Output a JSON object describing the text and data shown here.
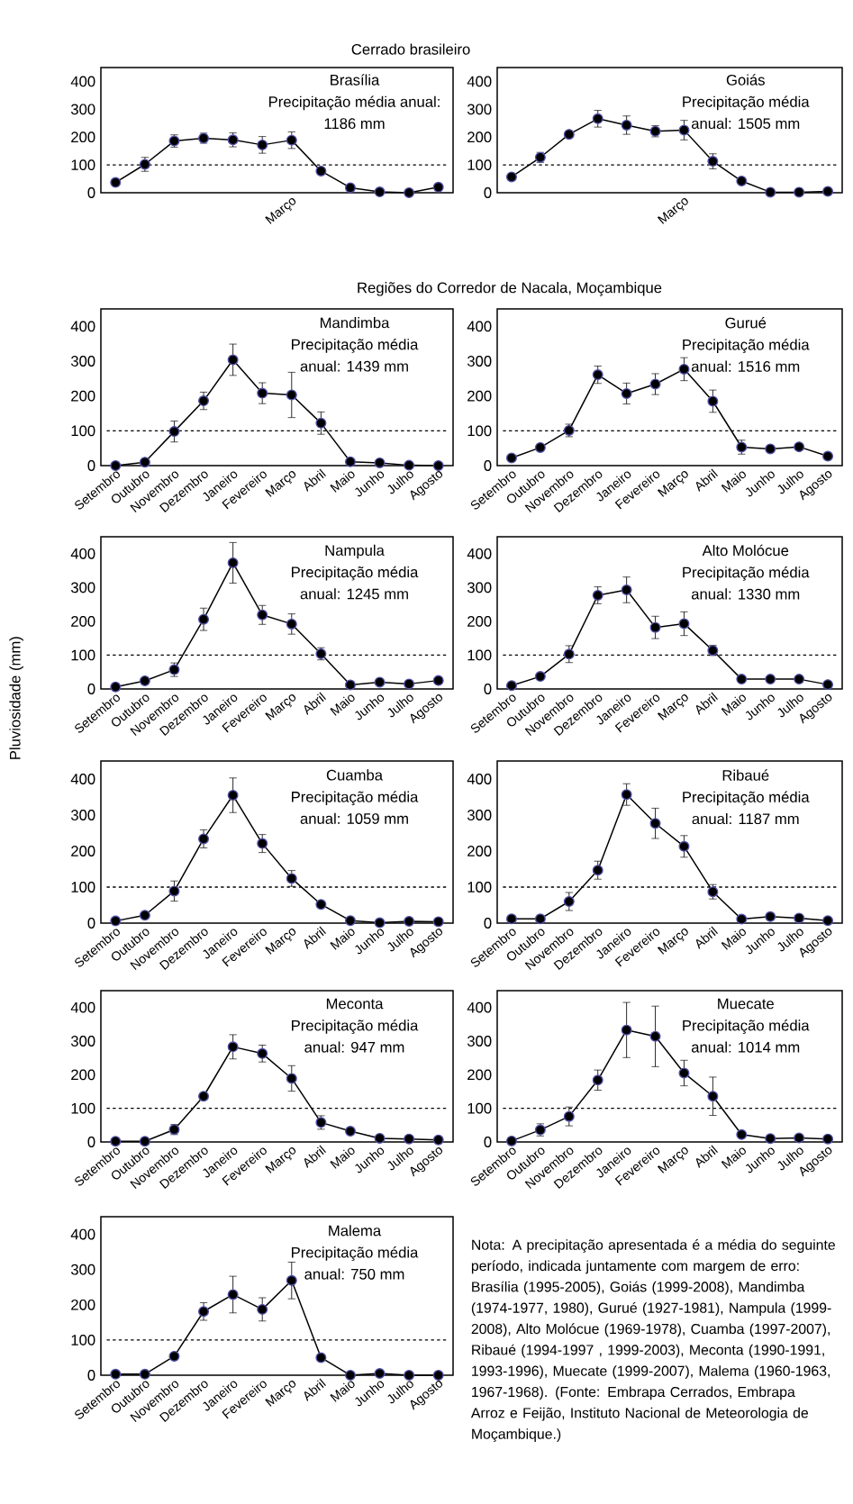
{
  "chart_data": [
    {
      "type": "line",
      "title": "Cerrado brasileiro",
      "subtitle": "Brasília",
      "annotations": [
        "Precipitação média anual:",
        "1186 mm"
      ],
      "categories": [
        null,
        null,
        null,
        null,
        null,
        null,
        "Março",
        null,
        null,
        null,
        null,
        null
      ],
      "values": [
        37,
        102,
        186,
        196,
        190,
        172,
        189,
        78,
        18,
        3,
        0,
        20
      ],
      "errors": [
        null,
        25,
        22,
        18,
        25,
        30,
        30,
        null,
        null,
        null,
        null,
        null
      ],
      "color": "#000000",
      "marker": "circle",
      "ylim": [
        0,
        450
      ],
      "yticks": [
        0,
        100,
        200,
        300,
        400
      ],
      "ref_lines": [
        {
          "axis": "y",
          "value": 100,
          "line_style": "dashed"
        }
      ]
    },
    {
      "type": "line",
      "subtitle": "Goiás",
      "annotations": [
        "Precipitação média",
        "anual: 1505 mm"
      ],
      "categories": [
        null,
        null,
        null,
        null,
        null,
        null,
        "Março",
        null,
        null,
        null,
        null,
        null
      ],
      "values": [
        57,
        127,
        210,
        266,
        243,
        221,
        225,
        113,
        42,
        2,
        2,
        5
      ],
      "errors": [
        null,
        18,
        null,
        30,
        33,
        20,
        35,
        27,
        null,
        null,
        null,
        null
      ],
      "color": "#000000",
      "marker": "circle",
      "ylim": [
        0,
        450
      ],
      "yticks": [
        0,
        100,
        200,
        300,
        400
      ],
      "ref_lines": [
        {
          "axis": "y",
          "value": 100,
          "line_style": "dashed"
        }
      ]
    },
    {
      "type": "line",
      "title": "Regiões do Corredor de Nacala, Moçambique",
      "subtitle": "Mandimba",
      "annotations": [
        "Precipitação média",
        "anual: 1439 mm"
      ],
      "categories": [
        "Setembro",
        "Outubro",
        "Novembro",
        "Dezembro",
        "Janeiro",
        "Fevereiro",
        "Março",
        "Abril",
        "Maio",
        "Junho",
        "Julho",
        "Agosto"
      ],
      "values": [
        0,
        10,
        98,
        186,
        304,
        208,
        203,
        122,
        11,
        8,
        1,
        0
      ],
      "errors": [
        null,
        null,
        30,
        25,
        45,
        30,
        65,
        32,
        null,
        null,
        null,
        null
      ],
      "color": "#000000",
      "marker": "circle",
      "ylim": [
        0,
        450
      ],
      "yticks": [
        0,
        100,
        200,
        300,
        400
      ],
      "ref_lines": [
        {
          "axis": "y",
          "value": 100,
          "line_style": "dashed"
        }
      ]
    },
    {
      "type": "line",
      "subtitle": "Gurué",
      "annotations": [
        "Precipitação média",
        "anual: 1516 mm"
      ],
      "categories": [
        "Setembro",
        "Outubro",
        "Novembro",
        "Dezembro",
        "Janeiro",
        "Fevereiro",
        "Março",
        "Abril",
        "Maio",
        "Junho",
        "Julho",
        "Agosto"
      ],
      "values": [
        22,
        52,
        101,
        261,
        207,
        234,
        277,
        185,
        53,
        48,
        54,
        27
      ],
      "errors": [
        null,
        null,
        18,
        25,
        30,
        30,
        33,
        32,
        20,
        null,
        null,
        null
      ],
      "color": "#000000",
      "marker": "circle",
      "ylim": [
        0,
        450
      ],
      "yticks": [
        0,
        100,
        200,
        300,
        400
      ],
      "ref_lines": [
        {
          "axis": "y",
          "value": 100,
          "line_style": "dashed"
        }
      ]
    },
    {
      "type": "line",
      "subtitle": "Nampula",
      "ylabel": "Pluviosidade (mm)",
      "annotations": [
        "Precipitação média",
        "anual: 1245 mm"
      ],
      "categories": [
        "Setembro",
        "Outubro",
        "Novembro",
        "Dezembro",
        "Janeiro",
        "Fevereiro",
        "Março",
        "Abril",
        "Maio",
        "Junho",
        "Julho",
        "Agosto"
      ],
      "values": [
        6,
        24,
        57,
        206,
        373,
        219,
        192,
        104,
        12,
        20,
        15,
        25
      ],
      "errors": [
        null,
        null,
        20,
        33,
        60,
        28,
        30,
        18,
        null,
        null,
        null,
        null
      ],
      "color": "#000000",
      "marker": "circle",
      "ylim": [
        0,
        450
      ],
      "yticks": [
        0,
        100,
        200,
        300,
        400
      ],
      "ref_lines": [
        {
          "axis": "y",
          "value": 100,
          "line_style": "dashed"
        }
      ]
    },
    {
      "type": "line",
      "subtitle": "Alto Molócue",
      "annotations": [
        "Precipitação média",
        "anual: 1330 mm"
      ],
      "categories": [
        "Setembro",
        "Outubro",
        "Novembro",
        "Dezembro",
        "Janeiro",
        "Fevereiro",
        "Março",
        "Abril",
        "Maio",
        "Junho",
        "Julho",
        "Agosto"
      ],
      "values": [
        10,
        37,
        103,
        277,
        293,
        182,
        193,
        114,
        29,
        29,
        29,
        13
      ],
      "errors": [
        null,
        null,
        25,
        25,
        38,
        33,
        35,
        15,
        null,
        null,
        null,
        null
      ],
      "color": "#000000",
      "marker": "circle",
      "ylim": [
        0,
        450
      ],
      "yticks": [
        0,
        100,
        200,
        300,
        400
      ],
      "ref_lines": [
        {
          "axis": "y",
          "value": 100,
          "line_style": "dashed"
        }
      ]
    },
    {
      "type": "line",
      "subtitle": "Cuamba",
      "annotations": [
        "Precipitação média",
        "anual: 1059 mm"
      ],
      "categories": [
        "Setembro",
        "Outubro",
        "Novembro",
        "Dezembro",
        "Janeiro",
        "Fevereiro",
        "Março",
        "Abril",
        "Maio",
        "Junho",
        "Julho",
        "Agosto"
      ],
      "values": [
        6,
        22,
        89,
        234,
        355,
        221,
        124,
        52,
        7,
        1,
        5,
        4
      ],
      "errors": [
        null,
        null,
        28,
        25,
        48,
        25,
        22,
        null,
        null,
        null,
        null,
        null
      ],
      "color": "#000000",
      "marker": "circle",
      "ylim": [
        0,
        450
      ],
      "yticks": [
        0,
        100,
        200,
        300,
        400
      ],
      "ref_lines": [
        {
          "axis": "y",
          "value": 100,
          "line_style": "dashed"
        }
      ]
    },
    {
      "type": "line",
      "subtitle": "Ribaué",
      "annotations": [
        "Precipitação média",
        "anual: 1187 mm"
      ],
      "categories": [
        "Setembro",
        "Outubro",
        "Novembro",
        "Dezembro",
        "Janeiro",
        "Fevereiro",
        "Março",
        "Abril",
        "Maio",
        "Junho",
        "Julho",
        "Agosto"
      ],
      "values": [
        12,
        12,
        60,
        147,
        357,
        277,
        213,
        87,
        11,
        18,
        14,
        7
      ],
      "errors": [
        null,
        null,
        25,
        25,
        30,
        42,
        30,
        20,
        null,
        null,
        null,
        null
      ],
      "color": "#000000",
      "marker": "circle",
      "ylim": [
        0,
        450
      ],
      "yticks": [
        0,
        100,
        200,
        300,
        400
      ],
      "ref_lines": [
        {
          "axis": "y",
          "value": 100,
          "line_style": "dashed"
        }
      ]
    },
    {
      "type": "line",
      "subtitle": "Meconta",
      "annotations": [
        "Precipitação média",
        "anual: 947 mm"
      ],
      "categories": [
        "Setembro",
        "Outubro",
        "Novembro",
        "Dezembro",
        "Janeiro",
        "Fevereiro",
        "Março",
        "Abril",
        "Maio",
        "Junho",
        "Julho",
        "Agosto"
      ],
      "values": [
        2,
        2,
        37,
        136,
        283,
        263,
        189,
        58,
        32,
        11,
        9,
        6
      ],
      "errors": [
        null,
        null,
        15,
        null,
        36,
        25,
        38,
        20,
        null,
        null,
        null,
        null
      ],
      "color": "#000000",
      "marker": "circle",
      "ylim": [
        0,
        450
      ],
      "yticks": [
        0,
        100,
        200,
        300,
        400
      ],
      "ref_lines": [
        {
          "axis": "y",
          "value": 100,
          "line_style": "dashed"
        }
      ]
    },
    {
      "type": "line",
      "subtitle": "Muecate",
      "annotations": [
        "Precipitação média",
        "anual: 1014 mm"
      ],
      "categories": [
        "Setembro",
        "Outubro",
        "Novembro",
        "Dezembro",
        "Janeiro",
        "Fevereiro",
        "Março",
        "Abril",
        "Maio",
        "Junho",
        "Julho",
        "Agosto"
      ],
      "values": [
        3,
        36,
        76,
        184,
        333,
        314,
        205,
        136,
        22,
        10,
        12,
        9
      ],
      "errors": [
        null,
        18,
        28,
        30,
        82,
        90,
        38,
        57,
        null,
        null,
        null,
        null
      ],
      "color": "#000000",
      "marker": "circle",
      "ylim": [
        0,
        450
      ],
      "yticks": [
        0,
        100,
        200,
        300,
        400
      ],
      "ref_lines": [
        {
          "axis": "y",
          "value": 100,
          "line_style": "dashed"
        }
      ]
    },
    {
      "type": "line",
      "subtitle": "Malema",
      "annotations": [
        "Precipitação média",
        "anual: 750 mm",
        "Nota: A precipitação apresentada é a média do seguinte período, indicada juntamente com margem de erro: Brasília (1995-2005), Goiás (1999-2008), Mandimba (1974-1977, 1980), Gurué (1927-1981), Nampula (1999-2008), Alto Molócue (1969-1978), Cuamba (1997-2007), Ribaué (1994-1997 , 1999-2003), Meconta (1990-1991, 1993-1996), Muecate (1999-2007), Malema (1960-1963, 1967-1968). (Fonte: Embrapa Cerrados, Embrapa Arroz e Feijão, Instituto Nacional de Meteorologia de Moçambique.)"
      ],
      "categories": [
        "Setembro",
        "Outubro",
        "Novembro",
        "Dezembro",
        "Janeiro",
        "Fevereiro",
        "Março",
        "Abril",
        "Maio",
        "Junho",
        "Julho",
        "Agosto"
      ],
      "values": [
        3,
        3,
        54,
        181,
        229,
        187,
        269,
        50,
        0,
        5,
        0,
        0
      ],
      "errors": [
        null,
        null,
        null,
        25,
        52,
        33,
        52,
        null,
        null,
        null,
        null,
        null
      ],
      "color": "#000000",
      "marker": "circle",
      "ylim": [
        0,
        450
      ],
      "yticks": [
        0,
        100,
        200,
        300,
        400
      ],
      "ref_lines": [
        {
          "axis": "y",
          "value": 100,
          "line_style": "dashed"
        }
      ]
    }
  ]
}
